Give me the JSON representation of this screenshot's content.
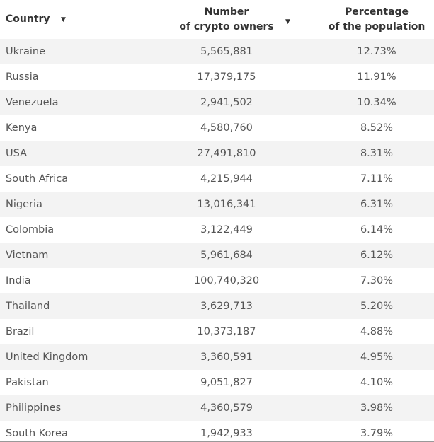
{
  "table": {
    "headers": [
      [
        "Country"
      ],
      [
        "Number",
        "of crypto owners"
      ],
      [
        "Percentage",
        "of the population"
      ]
    ],
    "rows": [
      [
        "Ukraine",
        "5,565,881",
        "12.73%"
      ],
      [
        "Russia",
        "17,379,175",
        "11.91%"
      ],
      [
        "Venezuela",
        "2,941,502",
        "10.34%"
      ],
      [
        "Kenya",
        "4,580,760",
        "8.52%"
      ],
      [
        "USA",
        "27,491,810",
        "8.31%"
      ],
      [
        "South Africa",
        "4,215,944",
        "7.11%"
      ],
      [
        "Nigeria",
        "13,016,341",
        "6.31%"
      ],
      [
        "Colombia",
        "3,122,449",
        "6.14%"
      ],
      [
        "Vietnam",
        "5,961,684",
        "6.12%"
      ],
      [
        "India",
        "100,740,320",
        "7.30%"
      ],
      [
        "Thailand",
        "3,629,713",
        "5.20%"
      ],
      [
        "Brazil",
        "10,373,187",
        "4.88%"
      ],
      [
        "United Kingdom",
        "3,360,591",
        "4.95%"
      ],
      [
        "Pakistan",
        "9,051,827",
        "4.10%"
      ],
      [
        "Philippines",
        "4,360,579",
        "3.98%"
      ],
      [
        "South Korea",
        "1,942,933",
        "3.79%"
      ]
    ]
  }
}
